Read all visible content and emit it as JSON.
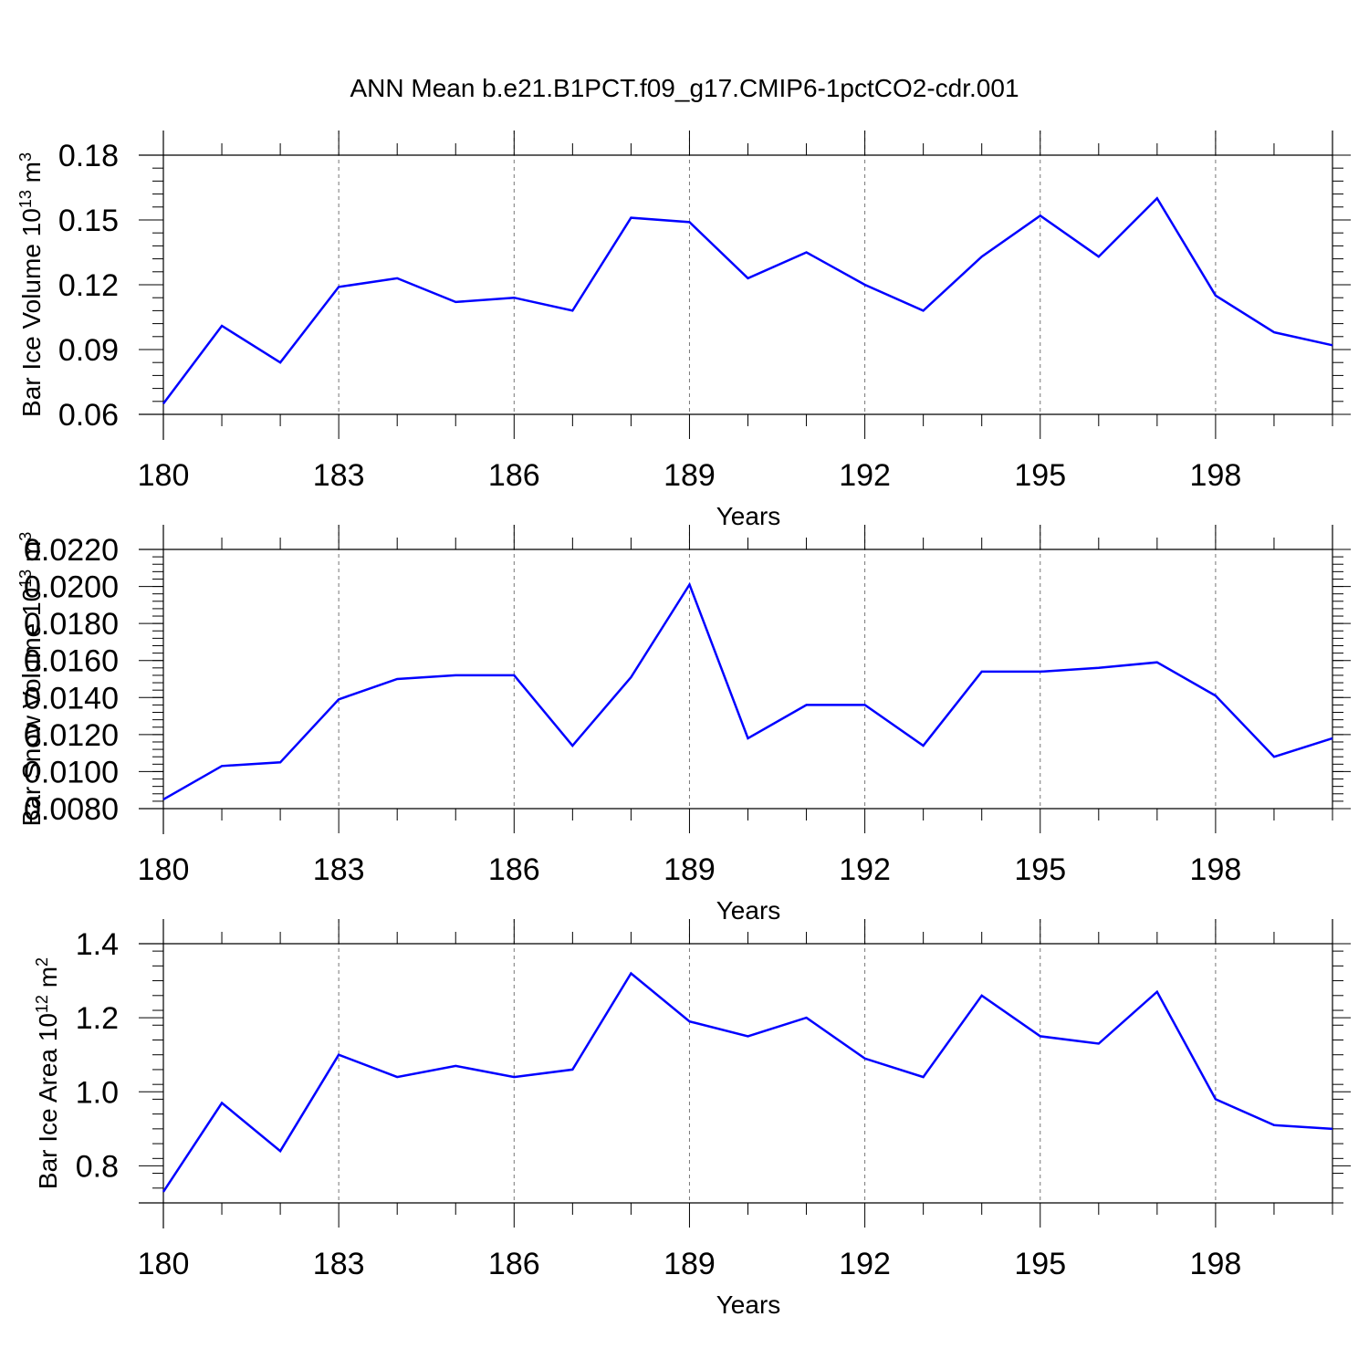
{
  "title": "ANN Mean b.e21.B1PCT.f09_g17.CMIP6-1pctCO2-cdr.001",
  "line_color": "#0000ff",
  "chart_data": [
    {
      "type": "line",
      "ylabel": "Bar Ice Volume 10",
      "ylabel_sup": "13",
      "ylabel_unit": " m",
      "ylabel_unit_sup": "3",
      "xlabel": "Years",
      "xlim": [
        180,
        200
      ],
      "ylim": [
        0.06,
        0.18
      ],
      "x_ticks": [
        180,
        183,
        186,
        189,
        192,
        195,
        198
      ],
      "x_tick_labels": [
        "180",
        "183",
        "186",
        "189",
        "192",
        "195",
        "198"
      ],
      "y_ticks": [
        0.06,
        0.09,
        0.12,
        0.15,
        0.18
      ],
      "y_tick_labels": [
        "0.06",
        "0.09",
        "0.12",
        "0.15",
        "0.18"
      ],
      "x": [
        180,
        181,
        182,
        183,
        184,
        185,
        186,
        187,
        188,
        189,
        190,
        191,
        192,
        193,
        194,
        195,
        196,
        197,
        198,
        199,
        200
      ],
      "values": [
        0.065,
        0.101,
        0.084,
        0.119,
        0.123,
        0.112,
        0.114,
        0.108,
        0.151,
        0.149,
        0.123,
        0.135,
        0.12,
        0.108,
        0.133,
        0.152,
        0.133,
        0.16,
        0.115,
        0.098,
        0.092
      ]
    },
    {
      "type": "line",
      "ylabel": "Bar Snow Volume 10",
      "ylabel_sup": "13",
      "ylabel_unit": " m",
      "ylabel_unit_sup": "3",
      "xlabel": "Years",
      "xlim": [
        180,
        200
      ],
      "ylim": [
        0.008,
        0.022
      ],
      "x_ticks": [
        180,
        183,
        186,
        189,
        192,
        195,
        198
      ],
      "x_tick_labels": [
        "180",
        "183",
        "186",
        "189",
        "192",
        "195",
        "198"
      ],
      "y_ticks": [
        0.008,
        0.01,
        0.012,
        0.014,
        0.016,
        0.018,
        0.02,
        0.022
      ],
      "y_tick_labels": [
        "0.0080",
        "0.0100",
        "0.0120",
        "0.0140",
        "0.0160",
        "0.0180",
        "0.0200",
        "0.0220"
      ],
      "x": [
        180,
        181,
        182,
        183,
        184,
        185,
        186,
        187,
        188,
        189,
        190,
        191,
        192,
        193,
        194,
        195,
        196,
        197,
        198,
        199,
        200
      ],
      "values": [
        0.0085,
        0.0103,
        0.0105,
        0.0139,
        0.015,
        0.0152,
        0.0152,
        0.0114,
        0.0151,
        0.0201,
        0.0118,
        0.0136,
        0.0136,
        0.0114,
        0.0154,
        0.0154,
        0.0156,
        0.0159,
        0.0141,
        0.0108,
        0.0118
      ]
    },
    {
      "type": "line",
      "ylabel": "Bar Ice Area 10",
      "ylabel_sup": "12",
      "ylabel_unit": " m",
      "ylabel_unit_sup": "2",
      "xlabel": "Years",
      "xlim": [
        180,
        200
      ],
      "ylim": [
        0.7,
        1.4
      ],
      "x_ticks": [
        180,
        183,
        186,
        189,
        192,
        195,
        198
      ],
      "x_tick_labels": [
        "180",
        "183",
        "186",
        "189",
        "192",
        "195",
        "198"
      ],
      "y_ticks": [
        0.8,
        1.0,
        1.2,
        1.4
      ],
      "y_tick_labels": [
        "0.8",
        "1.0",
        "1.2",
        "1.4"
      ],
      "x": [
        180,
        181,
        182,
        183,
        184,
        185,
        186,
        187,
        188,
        189,
        190,
        191,
        192,
        193,
        194,
        195,
        196,
        197,
        198,
        199,
        200
      ],
      "values": [
        0.73,
        0.97,
        0.84,
        1.1,
        1.04,
        1.07,
        1.04,
        1.06,
        1.32,
        1.19,
        1.15,
        1.2,
        1.09,
        1.04,
        1.26,
        1.15,
        1.13,
        1.27,
        0.98,
        0.91,
        0.9
      ]
    }
  ]
}
